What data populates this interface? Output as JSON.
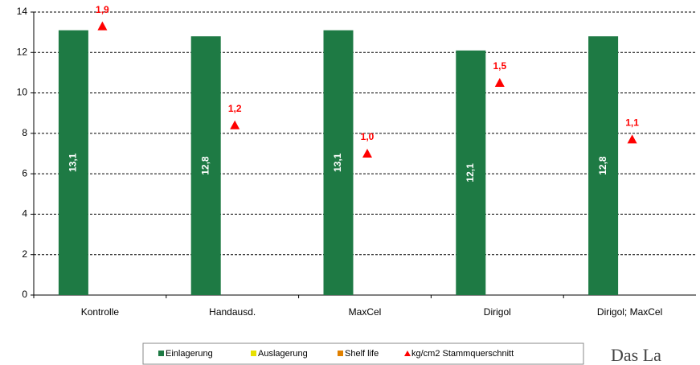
{
  "chart_data": {
    "type": "bar",
    "categories": [
      "Kontrolle",
      "Handausd.",
      "MaxCel",
      "Dirigol",
      "Dirigol; MaxCel"
    ],
    "series": [
      {
        "name": "Einlagerung",
        "color": "#1e7a44",
        "type": "bar",
        "values": [
          13.1,
          12.8,
          13.1,
          12.1,
          12.8
        ],
        "value_labels": [
          "13,1",
          "12,8",
          "13,1",
          "12,1",
          "12,8"
        ]
      },
      {
        "name": "Auslagerung",
        "color": "#e8e000",
        "type": "bar",
        "values": [
          null,
          null,
          null,
          null,
          null
        ]
      },
      {
        "name": "Shelf life",
        "color": "#e08000",
        "type": "bar",
        "values": [
          null,
          null,
          null,
          null,
          null
        ]
      },
      {
        "name": "kg/cm2 Stammquerschnitt",
        "color": "#ff0000",
        "type": "scatter",
        "axis": "y2",
        "values": [
          1.9,
          1.2,
          1.0,
          1.5,
          1.1
        ],
        "value_labels": [
          "1,9",
          "1,2",
          "1,0",
          "1,5",
          "1,1"
        ]
      }
    ],
    "ylim": [
      0,
      14
    ],
    "yticks": [
      0,
      2,
      4,
      6,
      8,
      10,
      12,
      14
    ],
    "y2lim": [
      0,
      2
    ],
    "grid": true,
    "legend": "bottom"
  },
  "logo_text": "Das La"
}
